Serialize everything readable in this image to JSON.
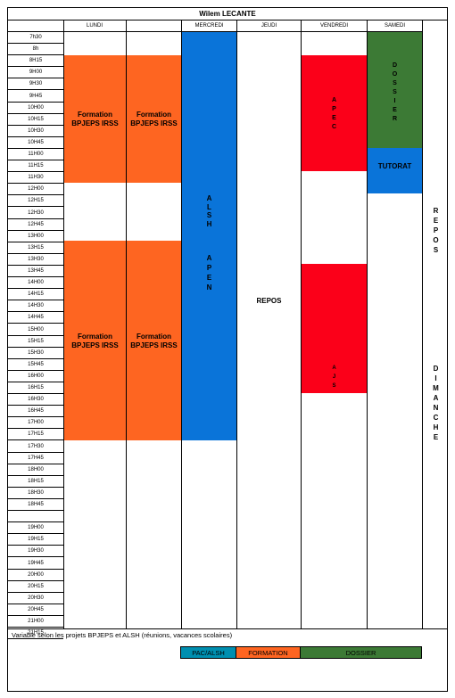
{
  "title": "Wilem LECANTE",
  "days": [
    "LUNDI",
    "",
    "MERCREDI",
    "JEUDI",
    "VENDREDI",
    "SAMEDI"
  ],
  "times": [
    "7h30",
    "8h",
    "8H15",
    "9H00",
    "9H30",
    "9H45",
    "10H00",
    "10H15",
    "10H30",
    "10H45",
    "11H00",
    "11H15",
    "11H30",
    "12H00",
    "12H15",
    "12H30",
    "12H45",
    "13H00",
    "13H15",
    "13H30",
    "13H45",
    "14H00",
    "14H15",
    "14H30",
    "14H45",
    "15H00",
    "15H15",
    "15H30",
    "15H45",
    "16H00",
    "16H15",
    "16H30",
    "16H45",
    "17H00",
    "17H15",
    "17H30",
    "17H45",
    "18H00",
    "18H15",
    "18H30",
    "18H45",
    "",
    "19H00",
    "19H15",
    "19H30",
    "19H45",
    "20H00",
    "20H15",
    "20H30",
    "20H45",
    "21H00",
    "21H15"
  ],
  "blocks": {
    "formation_label": "Formation BPJEPS IRSS",
    "alsh": "ALSH",
    "apen": "APEN",
    "apec": "APEC",
    "ajs": "AJS",
    "dossier": "DOSSIER",
    "tutorat": "TUTORAT",
    "repos_jeudi": "REPOS",
    "repos_side": "REPOS",
    "dimanche": "DIMANCHE"
  },
  "note": "Variable selon les projets BPJEPS et ALSH (réunions, vacances scolaires)",
  "legend": [
    "PAC/ALSH",
    "FORMATION",
    "DOSSIER"
  ],
  "colors": {
    "formation": "#fe6521",
    "alsh": "#0a74d9",
    "apec": "#fb0019",
    "dossier": "#3c7a35",
    "tutorat": "#0a74d9",
    "legend_pac": "#008fb0",
    "legend_formation": "#fe6521",
    "legend_dossier": "#3c7a35"
  }
}
